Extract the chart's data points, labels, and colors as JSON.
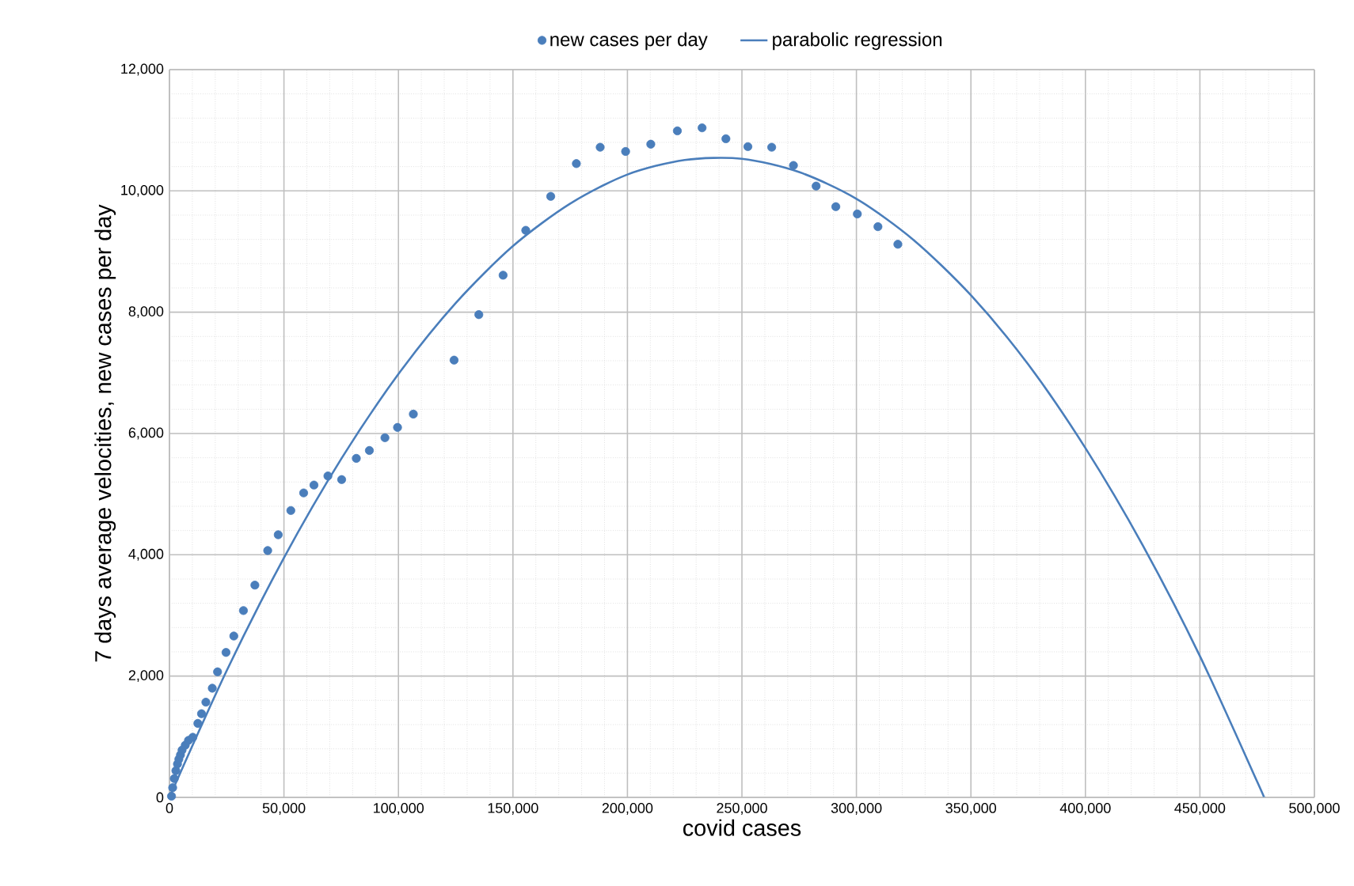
{
  "chart_data": {
    "type": "scatter",
    "xlabel": "covid  cases",
    "ylabel": "7 days average velocities, new cases per day",
    "legend": "top",
    "grid": true,
    "xlim": [
      0,
      500000
    ],
    "ylim": [
      0,
      12000
    ],
    "xticks": [
      0,
      {
        "value": 50000,
        "label": "50,000"
      },
      {
        "value": 100000,
        "label": "100,000"
      },
      {
        "value": 150000,
        "label": "150,000"
      },
      {
        "value": 200000,
        "label": "200,000"
      },
      {
        "value": 250000,
        "label": "250,000"
      },
      {
        "value": 300000,
        "label": "300,000"
      },
      {
        "value": 350000,
        "label": "350,000"
      },
      {
        "value": 400000,
        "label": "400,000"
      },
      {
        "value": 450000,
        "label": "450,000"
      },
      {
        "value": 500000,
        "label": "500,000"
      }
    ],
    "yticks": [
      0,
      {
        "value": 2000,
        "label": "2,000"
      },
      {
        "value": 4000,
        "label": "4,000"
      },
      {
        "value": 6000,
        "label": "6,000"
      },
      {
        "value": 8000,
        "label": "8,000"
      },
      {
        "value": 10000,
        "label": "10,000"
      },
      {
        "value": 12000,
        "label": "12,000"
      }
    ],
    "series": [
      {
        "name": "new cases per day",
        "type": "scatter",
        "marker": "circle",
        "color": "#4a7ebb",
        "x": [
          900,
          1400,
          2100,
          2800,
          3500,
          4100,
          4800,
          5500,
          6900,
          8300,
          10200,
          12400,
          14000,
          15900,
          18700,
          21000,
          24700,
          28100,
          32300,
          37300,
          42900,
          47500,
          53000,
          58600,
          63100,
          69200,
          75200,
          81600,
          87300,
          94100,
          99600,
          106500,
          124300,
          135100,
          145700,
          155600,
          166500,
          177700,
          188100,
          199200,
          210200,
          221800,
          232600,
          243000,
          252600,
          263000,
          272500,
          282400,
          291000,
          300400,
          309400,
          318100
        ],
        "values": [
          20,
          160,
          310,
          440,
          550,
          630,
          700,
          780,
          860,
          940,
          990,
          1220,
          1380,
          1570,
          1800,
          2070,
          2390,
          2660,
          3080,
          3500,
          4070,
          4330,
          4730,
          5020,
          5150,
          5300,
          5240,
          5590,
          5720,
          5930,
          6100,
          6320,
          7210,
          7960,
          8610,
          9350,
          9910,
          10450,
          10720,
          10650,
          10770,
          10990,
          11040,
          10860,
          10730,
          10720,
          10420,
          10080,
          9740,
          9620,
          9410,
          9120
        ]
      },
      {
        "name": "parabolic regression",
        "type": "line",
        "marker": "none",
        "line_style": "solid",
        "color": "#4a7ebb",
        "x": [
          0,
          25000,
          50000,
          75000,
          100000,
          125000,
          150000,
          175000,
          200000,
          225000,
          250000,
          275000,
          300000,
          325000,
          350000,
          375000,
          400000,
          425000,
          450000,
          475000,
          478000
        ],
        "values": [
          0,
          2090,
          3950,
          5580,
          6980,
          8150,
          9090,
          9790,
          10270,
          10510,
          10530,
          10310,
          9870,
          9190,
          8280,
          7140,
          5760,
          4160,
          2330,
          260,
          0
        ]
      }
    ]
  }
}
